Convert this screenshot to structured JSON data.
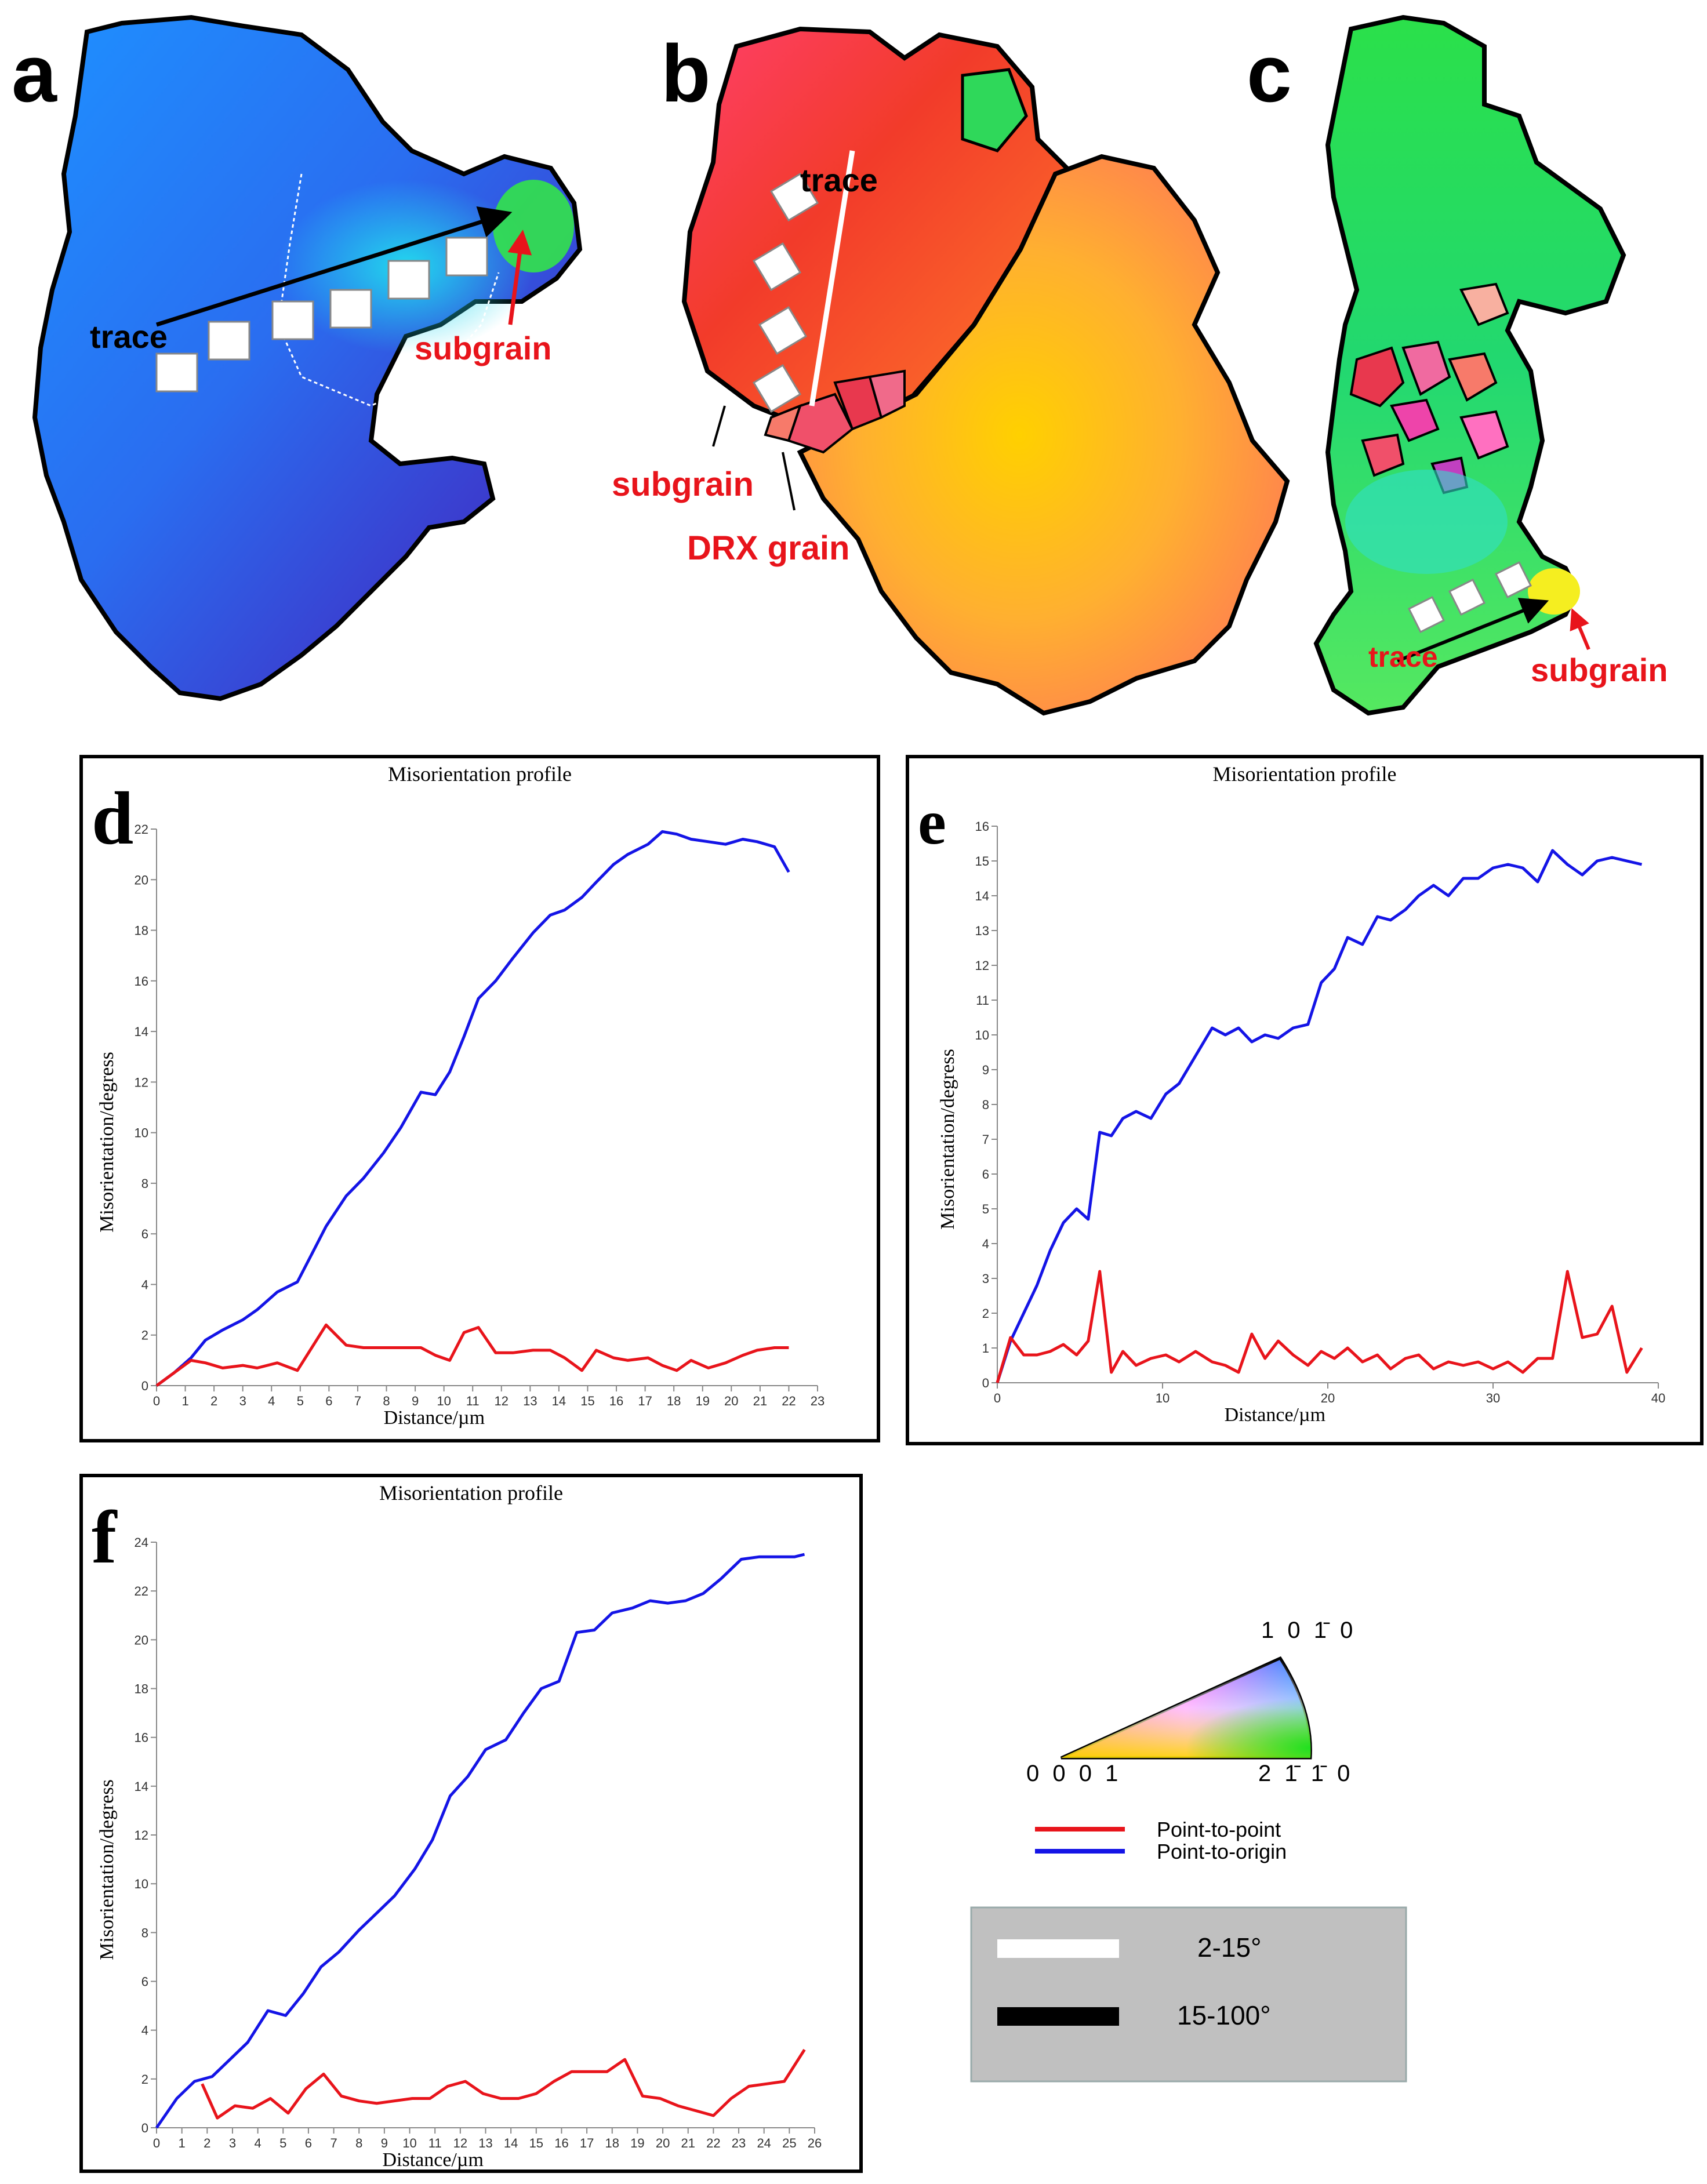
{
  "maps": [
    {
      "letter": "a",
      "labels": {
        "trace": "trace",
        "subgrain": "subgrain"
      }
    },
    {
      "letter": "b",
      "labels": {
        "trace": "trace",
        "subgrain": "subgrain",
        "drx": "DRX grain"
      }
    },
    {
      "letter": "c",
      "labels": {
        "trace": "trace",
        "subgrain": "subgrain"
      }
    }
  ],
  "legend": {
    "ipf": {
      "top": "1 0 1̄ 0",
      "left": "0 0 0 1",
      "right": "2 1̄ 1̄ 0"
    },
    "lines": [
      {
        "label": "Point-to-point",
        "color": "#e8141b"
      },
      {
        "label": "Point-to-origin",
        "color": "#1414e6"
      }
    ],
    "boundaries": [
      {
        "label": "2-15°",
        "color": "#ffffff"
      },
      {
        "label": "15-100°",
        "color": "#000000"
      }
    ],
    "box_color": "#c0c0c0"
  },
  "chart_data": [
    {
      "id": "d",
      "type": "line",
      "letter": "d",
      "title": "Misorientation profile",
      "xlabel": "Distance/µm",
      "ylabel": "Misorientation/degress",
      "xlim": [
        0,
        23
      ],
      "ylim": [
        0,
        22
      ],
      "xticks": [
        0,
        1,
        2,
        3,
        4,
        5,
        6,
        7,
        8,
        9,
        10,
        11,
        12,
        13,
        14,
        15,
        16,
        17,
        18,
        19,
        20,
        21,
        22,
        23
      ],
      "yticks": [
        0,
        2,
        4,
        6,
        8,
        10,
        12,
        14,
        16,
        18,
        20,
        22
      ],
      "series": [
        {
          "name": "Point-to-origin",
          "color": "#1414e6",
          "x": [
            0,
            0.6,
            1.2,
            1.7,
            2.3,
            3.0,
            3.5,
            4.2,
            4.9,
            5.4,
            5.9,
            6.6,
            7.2,
            7.9,
            8.5,
            9.2,
            9.7,
            10.2,
            10.7,
            11.2,
            11.8,
            12.4,
            13.1,
            13.7,
            14.2,
            14.8,
            15.3,
            15.9,
            16.4,
            17.1,
            17.6,
            18.1,
            18.6,
            19.2,
            19.8,
            20.4,
            20.9,
            21.5,
            22.0
          ],
          "y": [
            0,
            0.5,
            1.1,
            1.8,
            2.2,
            2.6,
            3.0,
            3.7,
            4.1,
            5.2,
            6.3,
            7.5,
            8.2,
            9.2,
            10.2,
            11.6,
            11.5,
            12.4,
            13.8,
            15.3,
            16.0,
            16.9,
            17.9,
            18.6,
            18.8,
            19.3,
            19.9,
            20.6,
            21.0,
            21.4,
            21.9,
            21.8,
            21.6,
            21.5,
            21.4,
            21.6,
            21.5,
            21.3,
            20.3
          ]
        },
        {
          "name": "Point-to-point",
          "color": "#e8141b",
          "x": [
            0,
            0.6,
            1.2,
            1.7,
            2.3,
            3.0,
            3.5,
            4.2,
            4.9,
            5.4,
            5.9,
            6.6,
            7.2,
            7.9,
            8.5,
            9.2,
            9.7,
            10.2,
            10.7,
            11.2,
            11.8,
            12.4,
            13.1,
            13.7,
            14.2,
            14.8,
            15.3,
            15.9,
            16.4,
            17.1,
            17.6,
            18.1,
            18.6,
            19.2,
            19.8,
            20.4,
            20.9,
            21.5,
            22.0
          ],
          "y": [
            0,
            0.5,
            1.0,
            0.9,
            0.7,
            0.8,
            0.7,
            0.9,
            0.6,
            1.5,
            2.4,
            1.6,
            1.5,
            1.5,
            1.5,
            1.5,
            1.2,
            1.0,
            2.1,
            2.3,
            1.3,
            1.3,
            1.4,
            1.4,
            1.1,
            0.6,
            1.4,
            1.1,
            1.0,
            1.1,
            0.8,
            0.6,
            1.0,
            0.7,
            0.9,
            1.2,
            1.4,
            1.5,
            1.5
          ]
        }
      ]
    },
    {
      "id": "e",
      "type": "line",
      "letter": "e",
      "title": "Misorientation profile",
      "xlabel": "Distance/µm",
      "ylabel": "Misorientation/degress",
      "xlim": [
        0,
        40
      ],
      "ylim": [
        0,
        16
      ],
      "xticks": [
        0,
        10,
        20,
        30,
        40
      ],
      "yticks": [
        0,
        1,
        2,
        3,
        4,
        5,
        6,
        7,
        8,
        9,
        10,
        11,
        12,
        13,
        14,
        15,
        16
      ],
      "series": [
        {
          "name": "Point-to-origin",
          "color": "#1414e6",
          "x": [
            0,
            0.8,
            1.6,
            2.4,
            3.2,
            4.0,
            4.8,
            5.5,
            6.2,
            6.9,
            7.6,
            8.4,
            9.3,
            10.2,
            11.0,
            12.0,
            13.0,
            13.8,
            14.6,
            15.4,
            16.2,
            17.0,
            17.9,
            18.8,
            19.6,
            20.4,
            21.2,
            22.1,
            23.0,
            23.8,
            24.7,
            25.5,
            26.4,
            27.3,
            28.2,
            29.1,
            30.0,
            30.9,
            31.8,
            32.7,
            33.6,
            34.5,
            35.4,
            36.3,
            37.2,
            38.1,
            39.0
          ],
          "y": [
            0,
            1.2,
            2.0,
            2.8,
            3.8,
            4.6,
            5.0,
            4.7,
            7.2,
            7.1,
            7.6,
            7.8,
            7.6,
            8.3,
            8.6,
            9.4,
            10.2,
            10.0,
            10.2,
            9.8,
            10.0,
            9.9,
            10.2,
            10.3,
            11.5,
            11.9,
            12.8,
            12.6,
            13.4,
            13.3,
            13.6,
            14.0,
            14.3,
            14.0,
            14.5,
            14.5,
            14.8,
            14.9,
            14.8,
            14.4,
            15.3,
            14.9,
            14.6,
            15.0,
            15.1,
            15.0,
            14.9
          ]
        },
        {
          "name": "Point-to-point",
          "color": "#e8141b",
          "x": [
            0,
            0.8,
            1.6,
            2.4,
            3.2,
            4.0,
            4.8,
            5.5,
            6.2,
            6.9,
            7.6,
            8.4,
            9.3,
            10.2,
            11.0,
            12.0,
            13.0,
            13.8,
            14.6,
            15.4,
            16.2,
            17.0,
            17.9,
            18.8,
            19.6,
            20.4,
            21.2,
            22.1,
            23.0,
            23.8,
            24.7,
            25.5,
            26.4,
            27.3,
            28.2,
            29.1,
            30.0,
            30.9,
            31.8,
            32.7,
            33.6,
            34.5,
            35.4,
            36.3,
            37.2,
            38.1,
            39.0
          ],
          "y": [
            0,
            1.3,
            0.8,
            0.8,
            0.9,
            1.1,
            0.8,
            1.2,
            3.2,
            0.3,
            0.9,
            0.5,
            0.7,
            0.8,
            0.6,
            0.9,
            0.6,
            0.5,
            0.3,
            1.4,
            0.7,
            1.2,
            0.8,
            0.5,
            0.9,
            0.7,
            1.0,
            0.6,
            0.8,
            0.4,
            0.7,
            0.8,
            0.4,
            0.6,
            0.5,
            0.6,
            0.4,
            0.6,
            0.3,
            0.7,
            0.7,
            3.2,
            1.3,
            1.4,
            2.2,
            0.3,
            1.0
          ]
        }
      ]
    },
    {
      "id": "f",
      "type": "line",
      "letter": "f",
      "title": "Misorientation profile",
      "xlabel": "Distance/µm",
      "ylabel": "Misorientation/degress",
      "xlim": [
        0,
        26
      ],
      "ylim": [
        0,
        24
      ],
      "xticks": [
        0,
        1,
        2,
        3,
        4,
        5,
        6,
        7,
        8,
        9,
        10,
        11,
        12,
        13,
        14,
        15,
        16,
        17,
        18,
        19,
        20,
        21,
        22,
        23,
        24,
        25,
        26
      ],
      "yticks": [
        0,
        2,
        4,
        6,
        8,
        10,
        12,
        14,
        16,
        18,
        20,
        22,
        24
      ],
      "series": [
        {
          "name": "Point-to-origin",
          "color": "#1414e6",
          "x": [
            0,
            0.8,
            1.5,
            2.2,
            2.9,
            3.6,
            4.4,
            5.1,
            5.8,
            6.5,
            7.2,
            8.0,
            8.7,
            9.4,
            10.2,
            10.9,
            11.6,
            12.3,
            13.0,
            13.8,
            14.5,
            15.2,
            15.9,
            16.6,
            17.3,
            18.0,
            18.8,
            19.5,
            20.2,
            20.9,
            21.6,
            22.3,
            23.1,
            23.8,
            24.5,
            25.2,
            25.6
          ],
          "y": [
            0,
            1.2,
            1.9,
            2.1,
            2.8,
            3.5,
            4.8,
            4.6,
            5.5,
            6.6,
            7.2,
            8.1,
            8.8,
            9.5,
            10.6,
            11.8,
            13.6,
            14.4,
            15.5,
            15.9,
            17.0,
            18.0,
            18.3,
            20.3,
            20.4,
            21.1,
            21.3,
            21.6,
            21.5,
            21.6,
            21.9,
            22.5,
            23.3,
            23.4,
            23.4,
            23.4,
            23.5
          ]
        },
        {
          "name": "Point-to-point",
          "color": "#e8141b",
          "x": [
            1.8,
            2.4,
            3.1,
            3.8,
            4.5,
            5.2,
            5.9,
            6.6,
            7.3,
            8.0,
            8.7,
            9.4,
            10.1,
            10.8,
            11.5,
            12.2,
            12.9,
            13.6,
            14.3,
            15.0,
            15.7,
            16.4,
            17.1,
            17.8,
            18.5,
            19.2,
            19.9,
            20.6,
            21.3,
            22.0,
            22.7,
            23.4,
            24.1,
            24.8,
            25.6
          ],
          "y": [
            1.8,
            0.4,
            0.9,
            0.8,
            1.2,
            0.6,
            1.6,
            2.2,
            1.3,
            1.1,
            1.0,
            1.1,
            1.2,
            1.2,
            1.7,
            1.9,
            1.4,
            1.2,
            1.2,
            1.4,
            1.9,
            2.3,
            2.3,
            2.3,
            2.8,
            1.3,
            1.2,
            0.9,
            0.7,
            0.5,
            1.2,
            1.7,
            1.8,
            1.9,
            3.2
          ]
        }
      ]
    }
  ]
}
